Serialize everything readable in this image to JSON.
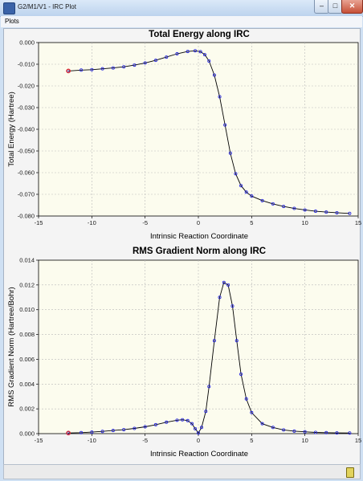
{
  "window": {
    "title": "G2/M1/V1 - IRC Plot",
    "icon": "app-icon",
    "controls": {
      "minimize": "–",
      "maximize": "□",
      "close": "✕"
    }
  },
  "menu": {
    "items": [
      "Plots"
    ]
  },
  "status": {
    "icon": "document-icon"
  },
  "colors": {
    "points": "#2020e0",
    "start_point": "#e03030",
    "curve": "#000000",
    "plot_background": "#fcfcee"
  },
  "chart_data": [
    {
      "type": "line",
      "title": "Total Energy along IRC",
      "xlabel": "Intrinsic Reaction Coordinate",
      "ylabel": "Total Energy (Hartree)",
      "xlim": [
        -15,
        15
      ],
      "ylim": [
        -0.08,
        0.0
      ],
      "xticks": [
        "-15",
        "-10",
        "-5",
        "0",
        "5",
        "10",
        "15"
      ],
      "yticks": [
        "0.000",
        "-0.010",
        "-0.020",
        "-0.030",
        "-0.040",
        "-0.050",
        "-0.060",
        "-0.070",
        "-0.080"
      ],
      "grid": true,
      "markers": "open-circles",
      "start_point": {
        "x": -12.2,
        "y": -0.0131
      },
      "series": [
        {
          "points": [
            [
              -12.2,
              -0.0131
            ],
            [
              -11.0,
              -0.0127
            ],
            [
              -10.0,
              -0.0125
            ],
            [
              -9.0,
              -0.0121
            ],
            [
              -8.0,
              -0.0117
            ],
            [
              -7.0,
              -0.0112
            ],
            [
              -6.0,
              -0.0104
            ],
            [
              -5.0,
              -0.0094
            ],
            [
              -4.0,
              -0.0082
            ],
            [
              -3.0,
              -0.0067
            ],
            [
              -2.0,
              -0.0052
            ],
            [
              -1.0,
              -0.0041
            ],
            [
              -0.3,
              -0.0038
            ],
            [
              0.2,
              -0.0042
            ],
            [
              0.6,
              -0.0056
            ],
            [
              1.0,
              -0.0085
            ],
            [
              1.5,
              -0.015
            ],
            [
              2.0,
              -0.025
            ],
            [
              2.5,
              -0.038
            ],
            [
              3.0,
              -0.051
            ],
            [
              3.5,
              -0.0605
            ],
            [
              4.0,
              -0.066
            ],
            [
              4.5,
              -0.069
            ],
            [
              5.0,
              -0.0708
            ],
            [
              6.0,
              -0.0729
            ],
            [
              7.0,
              -0.0744
            ],
            [
              8.0,
              -0.0756
            ],
            [
              9.0,
              -0.0765
            ],
            [
              10.0,
              -0.0772
            ],
            [
              11.0,
              -0.0778
            ],
            [
              12.0,
              -0.0782
            ],
            [
              13.0,
              -0.0785
            ],
            [
              14.2,
              -0.0788
            ]
          ]
        }
      ]
    },
    {
      "type": "line",
      "title": "RMS Gradient Norm along IRC",
      "xlabel": "Intrinsic Reaction Coordinate",
      "ylabel": "RMS Gradient Norm (Hartree/Bohr)",
      "xlim": [
        -15,
        15
      ],
      "ylim": [
        0.0,
        0.014
      ],
      "xticks": [
        "-15",
        "-10",
        "-5",
        "0",
        "5",
        "10",
        "15"
      ],
      "yticks": [
        "0.014",
        "0.012",
        "0.010",
        "0.008",
        "0.006",
        "0.004",
        "0.002",
        "0.000"
      ],
      "grid": true,
      "markers": "open-circles",
      "start_point": {
        "x": -12.2,
        "y": 5e-05
      },
      "series": [
        {
          "points": [
            [
              -12.2,
              5e-05
            ],
            [
              -11.0,
              8e-05
            ],
            [
              -10.0,
              0.00012
            ],
            [
              -9.0,
              0.00018
            ],
            [
              -8.0,
              0.00025
            ],
            [
              -7.0,
              0.00032
            ],
            [
              -6.0,
              0.00042
            ],
            [
              -5.0,
              0.00055
            ],
            [
              -4.0,
              0.00072
            ],
            [
              -3.0,
              0.00092
            ],
            [
              -2.0,
              0.00108
            ],
            [
              -1.5,
              0.00112
            ],
            [
              -1.0,
              0.00105
            ],
            [
              -0.6,
              0.0008
            ],
            [
              -0.3,
              0.0004
            ],
            [
              0.0,
              5e-05
            ],
            [
              0.3,
              0.0005
            ],
            [
              0.7,
              0.0018
            ],
            [
              1.0,
              0.0038
            ],
            [
              1.5,
              0.0075
            ],
            [
              2.0,
              0.011
            ],
            [
              2.4,
              0.0122
            ],
            [
              2.8,
              0.012
            ],
            [
              3.2,
              0.0103
            ],
            [
              3.6,
              0.0075
            ],
            [
              4.0,
              0.0048
            ],
            [
              4.5,
              0.0028
            ],
            [
              5.0,
              0.0017
            ],
            [
              6.0,
              0.0008
            ],
            [
              7.0,
              0.0005
            ],
            [
              8.0,
              0.0003
            ],
            [
              9.0,
              0.0002
            ],
            [
              10.0,
              0.00015
            ],
            [
              11.0,
              0.0001
            ],
            [
              12.0,
              8e-05
            ],
            [
              13.0,
              6e-05
            ],
            [
              14.2,
              5e-05
            ]
          ]
        }
      ]
    }
  ]
}
